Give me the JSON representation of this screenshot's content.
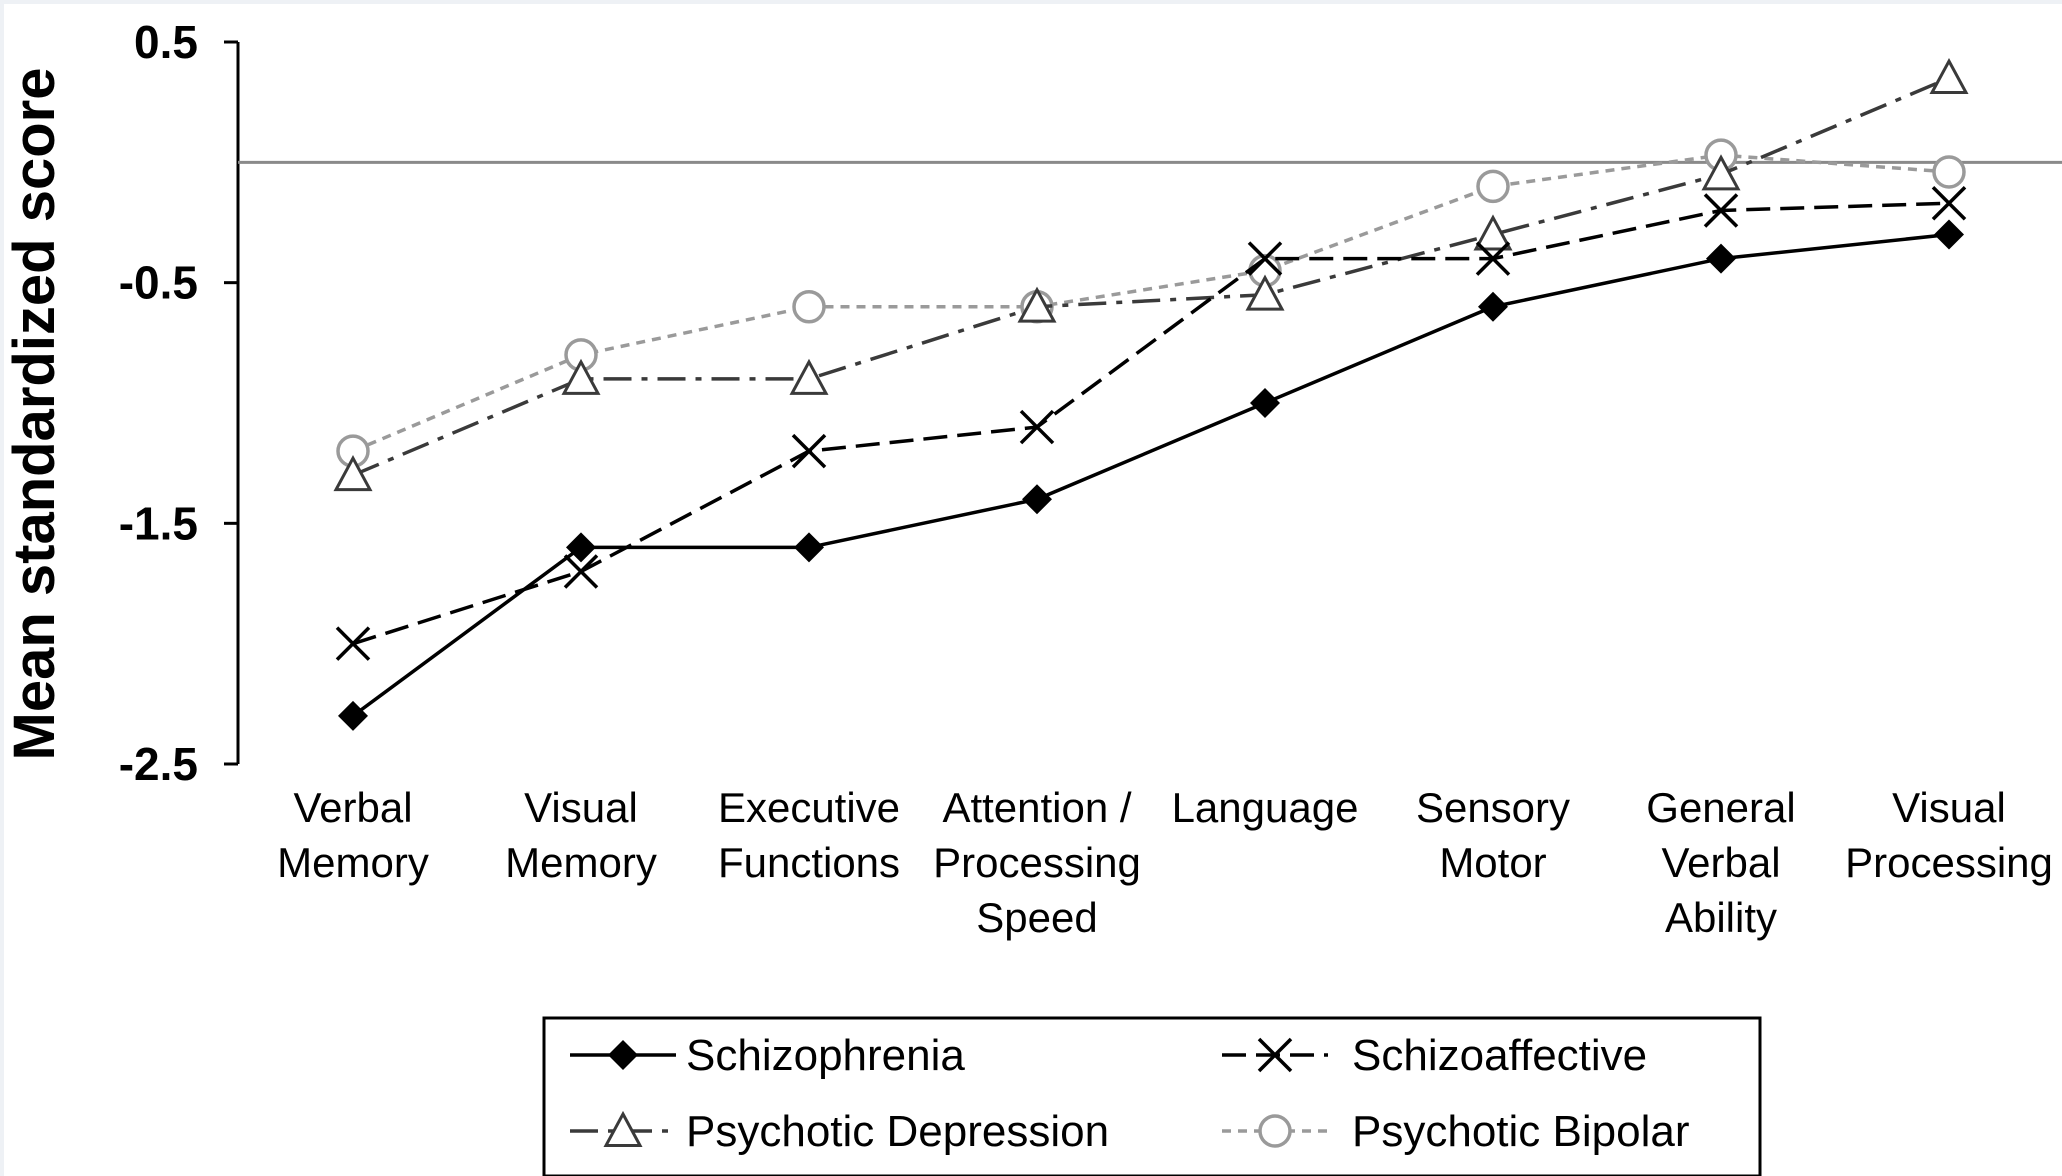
{
  "chart_data": {
    "type": "line",
    "title": "",
    "xlabel": "",
    "ylabel": "Mean standardized score",
    "ylim": [
      -2.5,
      0.5
    ],
    "yticks": [
      "0.5",
      "-0.5",
      "-1.5",
      "-2.5"
    ],
    "yticks_values": [
      0.5,
      -0.5,
      -1.5,
      -2.5
    ],
    "reference_line": 0,
    "grid": false,
    "legend_position": "bottom",
    "categories": [
      [
        "Verbal",
        "Memory"
      ],
      [
        "Visual",
        "Memory"
      ],
      [
        "Executive",
        "Functions"
      ],
      [
        "Attention /",
        "Processing",
        "Speed"
      ],
      [
        "Language"
      ],
      [
        "Sensory",
        "Motor"
      ],
      [
        "General",
        "Verbal",
        "Ability"
      ],
      [
        "Visual",
        "Processing"
      ]
    ],
    "series": [
      {
        "name": "Schizophrenia",
        "marker": "diamond",
        "line": "solid",
        "color": "#000000",
        "values": [
          -2.3,
          -1.6,
          -1.6,
          -1.4,
          -1.0,
          -0.6,
          -0.4,
          -0.3
        ]
      },
      {
        "name": "Schizoaffective",
        "marker": "x",
        "line": "dashed",
        "color": "#000000",
        "values": [
          -2.0,
          -1.7,
          -1.2,
          -1.1,
          -0.4,
          -0.4,
          -0.2,
          -0.17
        ]
      },
      {
        "name": "Psychotic Depression",
        "marker": "triangle",
        "line": "dashdot",
        "color": "#3a3a3a",
        "values": [
          -1.3,
          -0.9,
          -0.9,
          -0.6,
          -0.55,
          -0.3,
          -0.05,
          0.35
        ]
      },
      {
        "name": "Psychotic Bipolar",
        "marker": "circle",
        "line": "dotted",
        "color": "#9a9a9a",
        "values": [
          -1.2,
          -0.8,
          -0.6,
          -0.6,
          -0.45,
          -0.1,
          0.03,
          -0.04
        ]
      }
    ]
  }
}
